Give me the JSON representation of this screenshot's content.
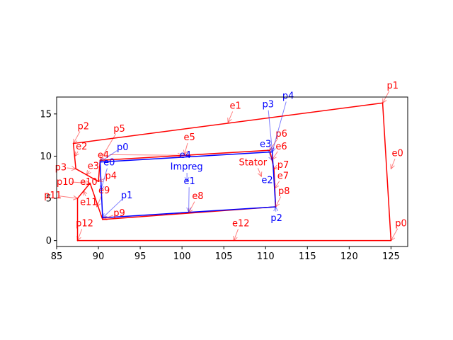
{
  "chart_data": {
    "type": "line",
    "title": "",
    "xlabel": "",
    "ylabel": "",
    "xlim": [
      85,
      127
    ],
    "ylim": [
      -0.7,
      17
    ],
    "grid": false,
    "xticks": [
      85,
      90,
      95,
      100,
      105,
      110,
      115,
      120,
      125
    ],
    "yticks": [
      0,
      5,
      10,
      15
    ],
    "colors": {
      "stator": "#ff0000",
      "impreg": "#0000ff"
    },
    "series": [
      {
        "name": "Stator",
        "color": "#ff0000",
        "points": {
          "p0": [
            125.0,
            0.0
          ],
          "p1": [
            124.0,
            16.3
          ],
          "p2": [
            87.0,
            11.5
          ],
          "p3": [
            87.3,
            8.5
          ],
          "p4": [
            90.0,
            7.0
          ],
          "p5": [
            90.2,
            9.5
          ],
          "p6": [
            110.5,
            10.7
          ],
          "p7": [
            111.0,
            8.5
          ],
          "p8": [
            111.2,
            4.0
          ],
          "p9": [
            90.5,
            2.5
          ],
          "p10": [
            89.0,
            6.8
          ],
          "p11": [
            87.5,
            5.0
          ],
          "p12": [
            87.5,
            0.0
          ]
        },
        "x": [
          125.0,
          124.0,
          87.0,
          87.3,
          90.0,
          90.2,
          110.5,
          111.0,
          111.2,
          90.5,
          89.0,
          87.5,
          87.5,
          125.0
        ],
        "y": [
          0.0,
          16.3,
          11.5,
          8.5,
          7.0,
          9.5,
          10.7,
          8.5,
          4.0,
          2.5,
          6.8,
          5.0,
          0.0,
          0.0
        ]
      },
      {
        "name": "Impreg",
        "color": "#0000ff",
        "points": {
          "p0": [
            90.2,
            9.3
          ],
          "p1": [
            90.5,
            2.7
          ],
          "p2": [
            111.2,
            4.0
          ],
          "p3": [
            110.8,
            10.5
          ]
        },
        "x": [
          90.2,
          90.5,
          111.2,
          110.8,
          90.2
        ],
        "y": [
          9.3,
          2.7,
          4.0,
          10.5,
          9.3
        ]
      }
    ],
    "annotations": [
      {
        "text": "p0",
        "color": "red",
        "xy": [
          125.0,
          0.0
        ],
        "xytext": [
          125.5,
          1.7
        ]
      },
      {
        "text": "p1",
        "color": "red",
        "xy": [
          124.0,
          16.3
        ],
        "xytext": [
          124.5,
          18.0
        ]
      },
      {
        "text": "p2",
        "color": "red",
        "xy": [
          87.0,
          11.5
        ],
        "xytext": [
          87.5,
          13.2
        ]
      },
      {
        "text": "p3",
        "color": "red",
        "xy": [
          87.3,
          8.5
        ],
        "xytext": [
          84.8,
          8.3
        ]
      },
      {
        "text": "p4",
        "color": "red",
        "xy": [
          90.0,
          7.0
        ],
        "xytext": [
          90.8,
          7.3
        ]
      },
      {
        "text": "p5",
        "color": "red",
        "xy": [
          90.2,
          9.5
        ],
        "xytext": [
          91.8,
          12.9
        ]
      },
      {
        "text": "p6",
        "color": "red",
        "xy": [
          110.5,
          10.7
        ],
        "xytext": [
          111.2,
          12.3
        ]
      },
      {
        "text": "p7",
        "color": "red",
        "xy": [
          111.0,
          8.5
        ],
        "xytext": [
          111.4,
          8.6
        ]
      },
      {
        "text": "p8",
        "color": "red",
        "xy": [
          111.2,
          4.0
        ],
        "xytext": [
          111.5,
          5.5
        ]
      },
      {
        "text": "p9",
        "color": "red",
        "xy": [
          90.5,
          2.5
        ],
        "xytext": [
          91.8,
          2.9
        ]
      },
      {
        "text": "p10",
        "color": "red",
        "xy": [
          89.0,
          6.8
        ],
        "xytext": [
          85.0,
          6.6
        ]
      },
      {
        "text": "p11",
        "color": "red",
        "xy": [
          87.5,
          5.0
        ],
        "xytext": [
          83.5,
          5.0
        ]
      },
      {
        "text": "p12",
        "color": "red",
        "xy": [
          87.5,
          0.0
        ],
        "xytext": [
          87.3,
          1.7
        ]
      },
      {
        "text": "e0",
        "color": "red",
        "xy": [
          125.0,
          8.5
        ],
        "xytext": [
          125.1,
          10.0
        ]
      },
      {
        "text": "e1",
        "color": "red",
        "xy": [
          105.5,
          14.0
        ],
        "xytext": [
          105.7,
          15.6
        ]
      },
      {
        "text": "e2",
        "color": "red",
        "xy": [
          87.2,
          10.0
        ],
        "xytext": [
          87.3,
          10.8
        ]
      },
      {
        "text": "e3",
        "color": "red",
        "xy": [
          88.6,
          7.8
        ],
        "xytext": [
          88.7,
          8.5
        ]
      },
      {
        "text": "e4",
        "color": "red",
        "xy": [
          100.0,
          10.1
        ],
        "xytext": [
          89.9,
          9.8
        ]
      },
      {
        "text": "e5",
        "color": "red",
        "xy": [
          100.3,
          10.2
        ],
        "xytext": [
          100.2,
          11.9
        ]
      },
      {
        "text": "e6",
        "color": "red",
        "xy": [
          110.8,
          9.6
        ],
        "xytext": [
          111.2,
          10.8
        ]
      },
      {
        "text": "e7",
        "color": "red",
        "xy": [
          111.1,
          6.2
        ],
        "xytext": [
          111.4,
          7.3
        ]
      },
      {
        "text": "e8",
        "color": "red",
        "xy": [
          100.8,
          3.3
        ],
        "xytext": [
          101.2,
          4.9
        ]
      },
      {
        "text": "e9",
        "color": "red",
        "xy": [
          89.8,
          4.0
        ],
        "xytext": [
          90.0,
          5.6
        ]
      },
      {
        "text": "e10",
        "color": "red",
        "xy": [
          89.6,
          7.7
        ],
        "xytext": [
          87.8,
          6.6
        ]
      },
      {
        "text": "e11",
        "color": "red",
        "xy": [
          88.2,
          5.9
        ],
        "xytext": [
          87.8,
          4.2
        ]
      },
      {
        "text": "e12",
        "color": "red",
        "xy": [
          106.2,
          0.0
        ],
        "xytext": [
          106.0,
          1.7
        ]
      },
      {
        "text": "Stator",
        "color": "red",
        "xy": [
          109.5,
          7.6
        ],
        "xytext": [
          106.8,
          8.9
        ]
      },
      {
        "text": "p0",
        "color": "blue",
        "xy": [
          90.2,
          9.3
        ],
        "xytext": [
          92.2,
          10.7
        ]
      },
      {
        "text": "p1",
        "color": "blue",
        "xy": [
          90.5,
          2.7
        ],
        "xytext": [
          92.7,
          5.0
        ]
      },
      {
        "text": "p2",
        "color": "blue",
        "xy": [
          111.2,
          4.0
        ],
        "xytext": [
          110.6,
          2.3
        ]
      },
      {
        "text": "p3",
        "color": "blue",
        "xy": [
          110.8,
          10.5
        ],
        "xytext": [
          109.6,
          15.8
        ]
      },
      {
        "text": "p4",
        "color": "blue",
        "xy": [
          110.8,
          10.5
        ],
        "xytext": [
          112.0,
          16.8
        ]
      },
      {
        "text": "e0",
        "color": "blue",
        "xy": [
          90.3,
          6.0
        ],
        "xytext": [
          90.6,
          8.9
        ]
      },
      {
        "text": "e1",
        "color": "blue",
        "xy": [
          100.8,
          3.4
        ],
        "xytext": [
          100.2,
          6.7
        ]
      },
      {
        "text": "e2",
        "color": "blue",
        "xy": [
          111.0,
          7.2
        ],
        "xytext": [
          109.5,
          6.8
        ]
      },
      {
        "text": "e3",
        "color": "blue",
        "xy": [
          110.8,
          9.5
        ],
        "xytext": [
          109.3,
          11.1
        ]
      },
      {
        "text": "e4",
        "color": "blue",
        "xy": [
          100.5,
          10.0
        ],
        "xytext": [
          99.7,
          9.8
        ]
      },
      {
        "text": "Impreg",
        "color": "blue",
        "xy": [
          100.6,
          7.0
        ],
        "xytext": [
          98.6,
          8.4
        ]
      }
    ]
  }
}
